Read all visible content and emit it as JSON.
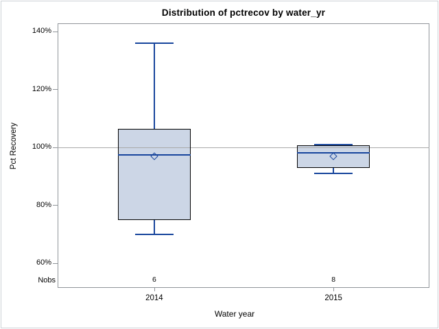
{
  "title": "Distribution of pctrecov by water_yr",
  "y_axis": {
    "title": "Pct Recovery"
  },
  "x_axis": {
    "title": "Water year"
  },
  "nobs_row_label": "Nobs",
  "chart_data": {
    "type": "boxplot",
    "title": "Distribution of pctrecov by water_yr",
    "xlabel": "Water year",
    "ylabel": "Pct Recovery",
    "y_ticks": [
      140,
      120,
      100,
      80,
      60
    ],
    "y_tick_suffix": "%",
    "ylim": [
      52,
      143
    ],
    "grid": false,
    "legend": "none",
    "reference_line": 100,
    "categories": [
      "2014",
      "2015"
    ],
    "nobs": [
      6,
      8
    ],
    "series": [
      {
        "category": "2014",
        "n": 6,
        "min": 70,
        "q1": 75,
        "median": 97.5,
        "mean": 97,
        "q3": 106.3,
        "max": 136
      },
      {
        "category": "2015",
        "n": 8,
        "min": 91,
        "q1": 93,
        "median": 98,
        "mean": 97,
        "q3": 100.8,
        "max": 101
      }
    ],
    "colors": {
      "box_fill": "#ccd6e6",
      "box_border": "#000000",
      "whisker": "#16449c",
      "mean_marker": "#16449c",
      "reference_line": "#a9a9a9"
    }
  }
}
